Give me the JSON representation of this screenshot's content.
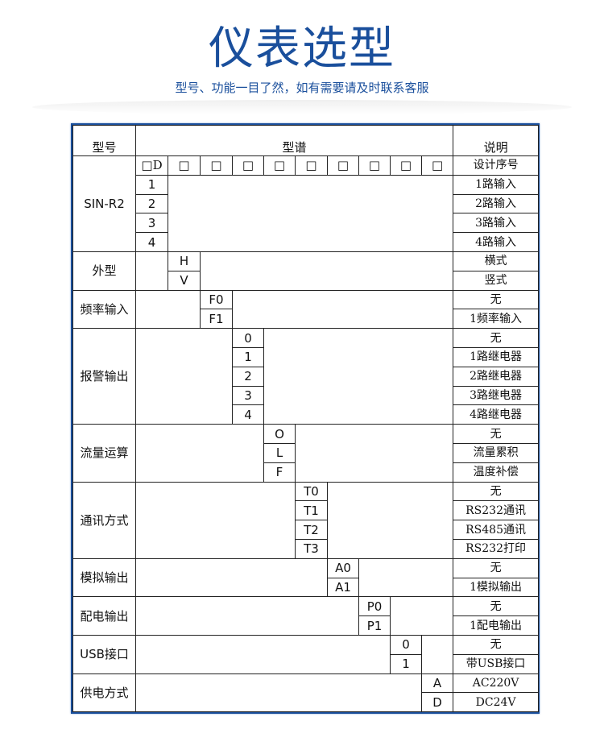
{
  "header": {
    "title": "仪表选型",
    "subtitle": "型号、功能一目了然，如有需要请及时联系客服"
  },
  "colors": {
    "accent": "#1a4f9c",
    "border": "#222222"
  },
  "table": {
    "headers": {
      "model": "型号",
      "spectrum": "型谱",
      "description": "说明"
    },
    "boxes": [
      "□D",
      "□",
      "□",
      "□",
      "□",
      "□",
      "□",
      "□",
      "□",
      "□"
    ],
    "box_description": "设计序号",
    "groups": [
      {
        "label": "SIN-R2",
        "options": [
          {
            "code": "1",
            "desc": "1路输入"
          },
          {
            "code": "2",
            "desc": "2路输入"
          },
          {
            "code": "3",
            "desc": "3路输入"
          },
          {
            "code": "4",
            "desc": "4路输入"
          }
        ]
      },
      {
        "label": "外型",
        "options": [
          {
            "code": "H",
            "desc": "横式"
          },
          {
            "code": "V",
            "desc": "竖式"
          }
        ]
      },
      {
        "label": "频率输入",
        "options": [
          {
            "code": "F0",
            "desc": "无"
          },
          {
            "code": "F1",
            "desc": "1频率输入"
          }
        ]
      },
      {
        "label": "报警输出",
        "options": [
          {
            "code": "0",
            "desc": "无"
          },
          {
            "code": "1",
            "desc": "1路继电器"
          },
          {
            "code": "2",
            "desc": "2路继电器"
          },
          {
            "code": "3",
            "desc": "3路继电器"
          },
          {
            "code": "4",
            "desc": "4路继电器"
          }
        ]
      },
      {
        "label": "流量运算",
        "options": [
          {
            "code": "O",
            "desc": "无"
          },
          {
            "code": "L",
            "desc": "流量累积"
          },
          {
            "code": "F",
            "desc": "温度补偿"
          }
        ]
      },
      {
        "label": "通讯方式",
        "options": [
          {
            "code": "T0",
            "desc": "无"
          },
          {
            "code": "T1",
            "desc": "RS232通讯"
          },
          {
            "code": "T2",
            "desc": "RS485通讯"
          },
          {
            "code": "T3",
            "desc": "RS232打印"
          }
        ]
      },
      {
        "label": "模拟输出",
        "options": [
          {
            "code": "A0",
            "desc": "无"
          },
          {
            "code": "A1",
            "desc": "1模拟输出"
          }
        ]
      },
      {
        "label": "配电输出",
        "options": [
          {
            "code": "P0",
            "desc": "无"
          },
          {
            "code": "P1",
            "desc": "1配电输出"
          }
        ]
      },
      {
        "label": "USB接口",
        "options": [
          {
            "code": "0",
            "desc": "无"
          },
          {
            "code": "1",
            "desc": "带USB接口"
          }
        ]
      },
      {
        "label": "供电方式",
        "options": [
          {
            "code": "A",
            "desc": "AC220V"
          },
          {
            "code": "D",
            "desc": "DC24V"
          }
        ]
      }
    ]
  }
}
